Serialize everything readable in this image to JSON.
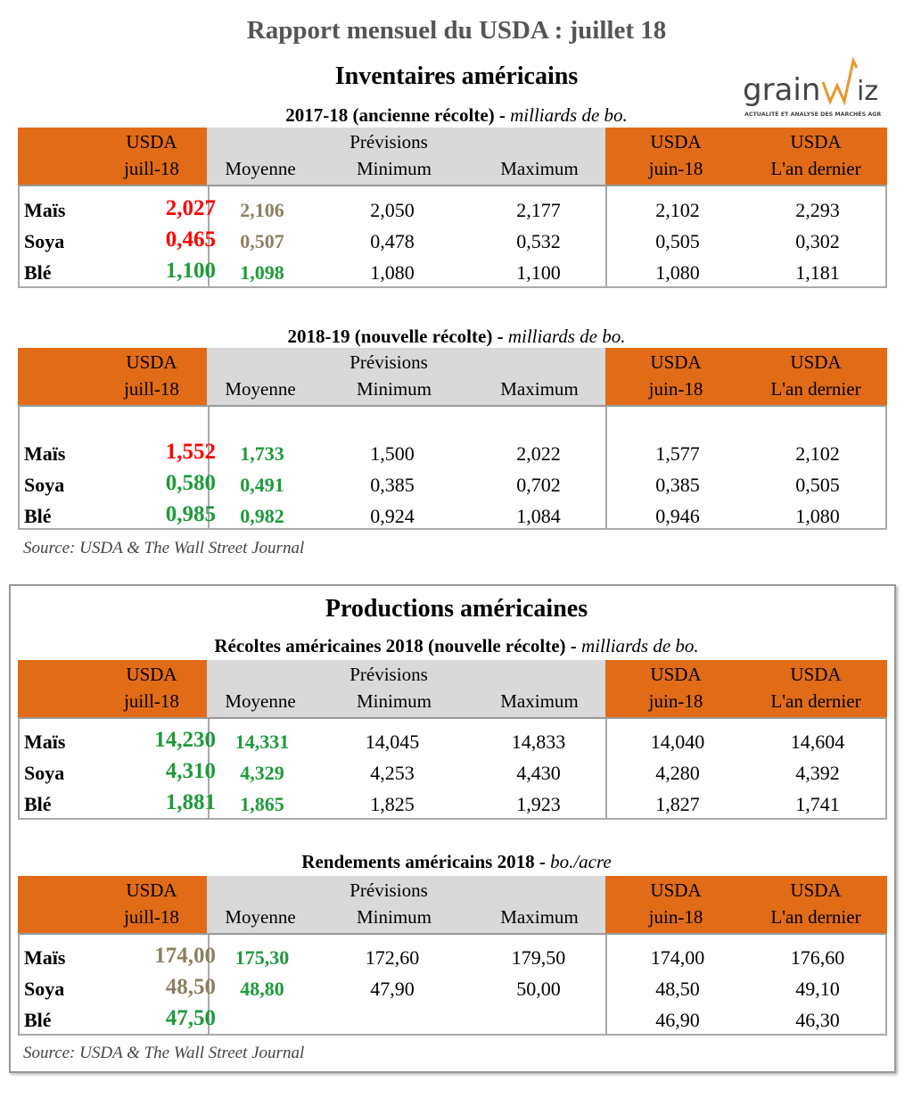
{
  "title": "Rapport mensuel du USDA : juillet 18",
  "inventory_title": "Inventaires américains",
  "production_title": "Productions américaines",
  "logo": {
    "name": "grainWiz",
    "tagline": "ACTUALITÉ ET ANALYSE DES MARCHÉS AGRICOLES"
  },
  "colors": {
    "orange": "#e16b17",
    "red": "#ff0000",
    "green": "#1e9a3c",
    "olive": "#8c8060",
    "gray": "#d9d9d9"
  },
  "header": {
    "usda": "USDA",
    "juill": "juill-18",
    "previsions": "Prévisions",
    "moyenne": "Moyenne",
    "minimum": "Minimum",
    "maximum": "Maximum",
    "juin": "juin-18",
    "an": "L'an dernier"
  },
  "source": "Source: USDA & The Wall Street Journal",
  "tables": [
    {
      "caption": "2017-18 (ancienne récolte)",
      "unit": "milliards de bo.",
      "rows": [
        {
          "label": "Maïs",
          "usda": "2,027",
          "usda_color": "red",
          "moy": "2,106",
          "moy_color": "olive",
          "min": "2,050",
          "max": "2,177",
          "juin": "2,102",
          "an": "2,293"
        },
        {
          "label": "Soya",
          "usda": "0,465",
          "usda_color": "red",
          "moy": "0,507",
          "moy_color": "olive",
          "min": "0,478",
          "max": "0,532",
          "juin": "0,505",
          "an": "0,302"
        },
        {
          "label": "Blé",
          "usda": "1,100",
          "usda_color": "green",
          "moy": "1,098",
          "moy_color": "green",
          "min": "1,080",
          "max": "1,100",
          "juin": "1,080",
          "an": "1,181"
        }
      ]
    },
    {
      "caption": "2018-19 (nouvelle récolte)",
      "unit": "milliards de bo.",
      "rows": [
        {
          "label": "Maïs",
          "usda": "1,552",
          "usda_color": "red",
          "moy": "1,733",
          "moy_color": "green",
          "min": "1,500",
          "max": "2,022",
          "juin": "1,577",
          "an": "2,102"
        },
        {
          "label": "Soya",
          "usda": "0,580",
          "usda_color": "green",
          "moy": "0,491",
          "moy_color": "green",
          "min": "0,385",
          "max": "0,702",
          "juin": "0,385",
          "an": "0,505"
        },
        {
          "label": "Blé",
          "usda": "0,985",
          "usda_color": "green",
          "moy": "0,982",
          "moy_color": "green",
          "min": "0,924",
          "max": "1,084",
          "juin": "0,946",
          "an": "1,080"
        }
      ]
    },
    {
      "caption": "Récoltes américaines 2018 (nouvelle récolte)",
      "unit": "milliards de bo.",
      "rows": [
        {
          "label": "Maïs",
          "usda": "14,230",
          "usda_color": "green",
          "moy": "14,331",
          "moy_color": "green",
          "min": "14,045",
          "max": "14,833",
          "juin": "14,040",
          "an": "14,604"
        },
        {
          "label": "Soya",
          "usda": "4,310",
          "usda_color": "green",
          "moy": "4,329",
          "moy_color": "green",
          "min": "4,253",
          "max": "4,430",
          "juin": "4,280",
          "an": "4,392"
        },
        {
          "label": "Blé",
          "usda": "1,881",
          "usda_color": "green",
          "moy": "1,865",
          "moy_color": "green",
          "min": "1,825",
          "max": "1,923",
          "juin": "1,827",
          "an": "1,741"
        }
      ]
    },
    {
      "caption": "Rendements américains 2018",
      "unit": "bo./acre",
      "rows": [
        {
          "label": "Maïs",
          "usda": "174,00",
          "usda_color": "olive",
          "moy": "175,30",
          "moy_color": "green",
          "min": "172,60",
          "max": "179,50",
          "juin": "174,00",
          "an": "176,60"
        },
        {
          "label": "Soya",
          "usda": "48,50",
          "usda_color": "olive",
          "moy": "48,80",
          "moy_color": "green",
          "min": "47,90",
          "max": "50,00",
          "juin": "48,50",
          "an": "49,10"
        },
        {
          "label": "Blé",
          "usda": "47,50",
          "usda_color": "green",
          "moy": "",
          "moy_color": "green",
          "min": "",
          "max": "",
          "juin": "46,90",
          "an": "46,30"
        }
      ]
    }
  ]
}
